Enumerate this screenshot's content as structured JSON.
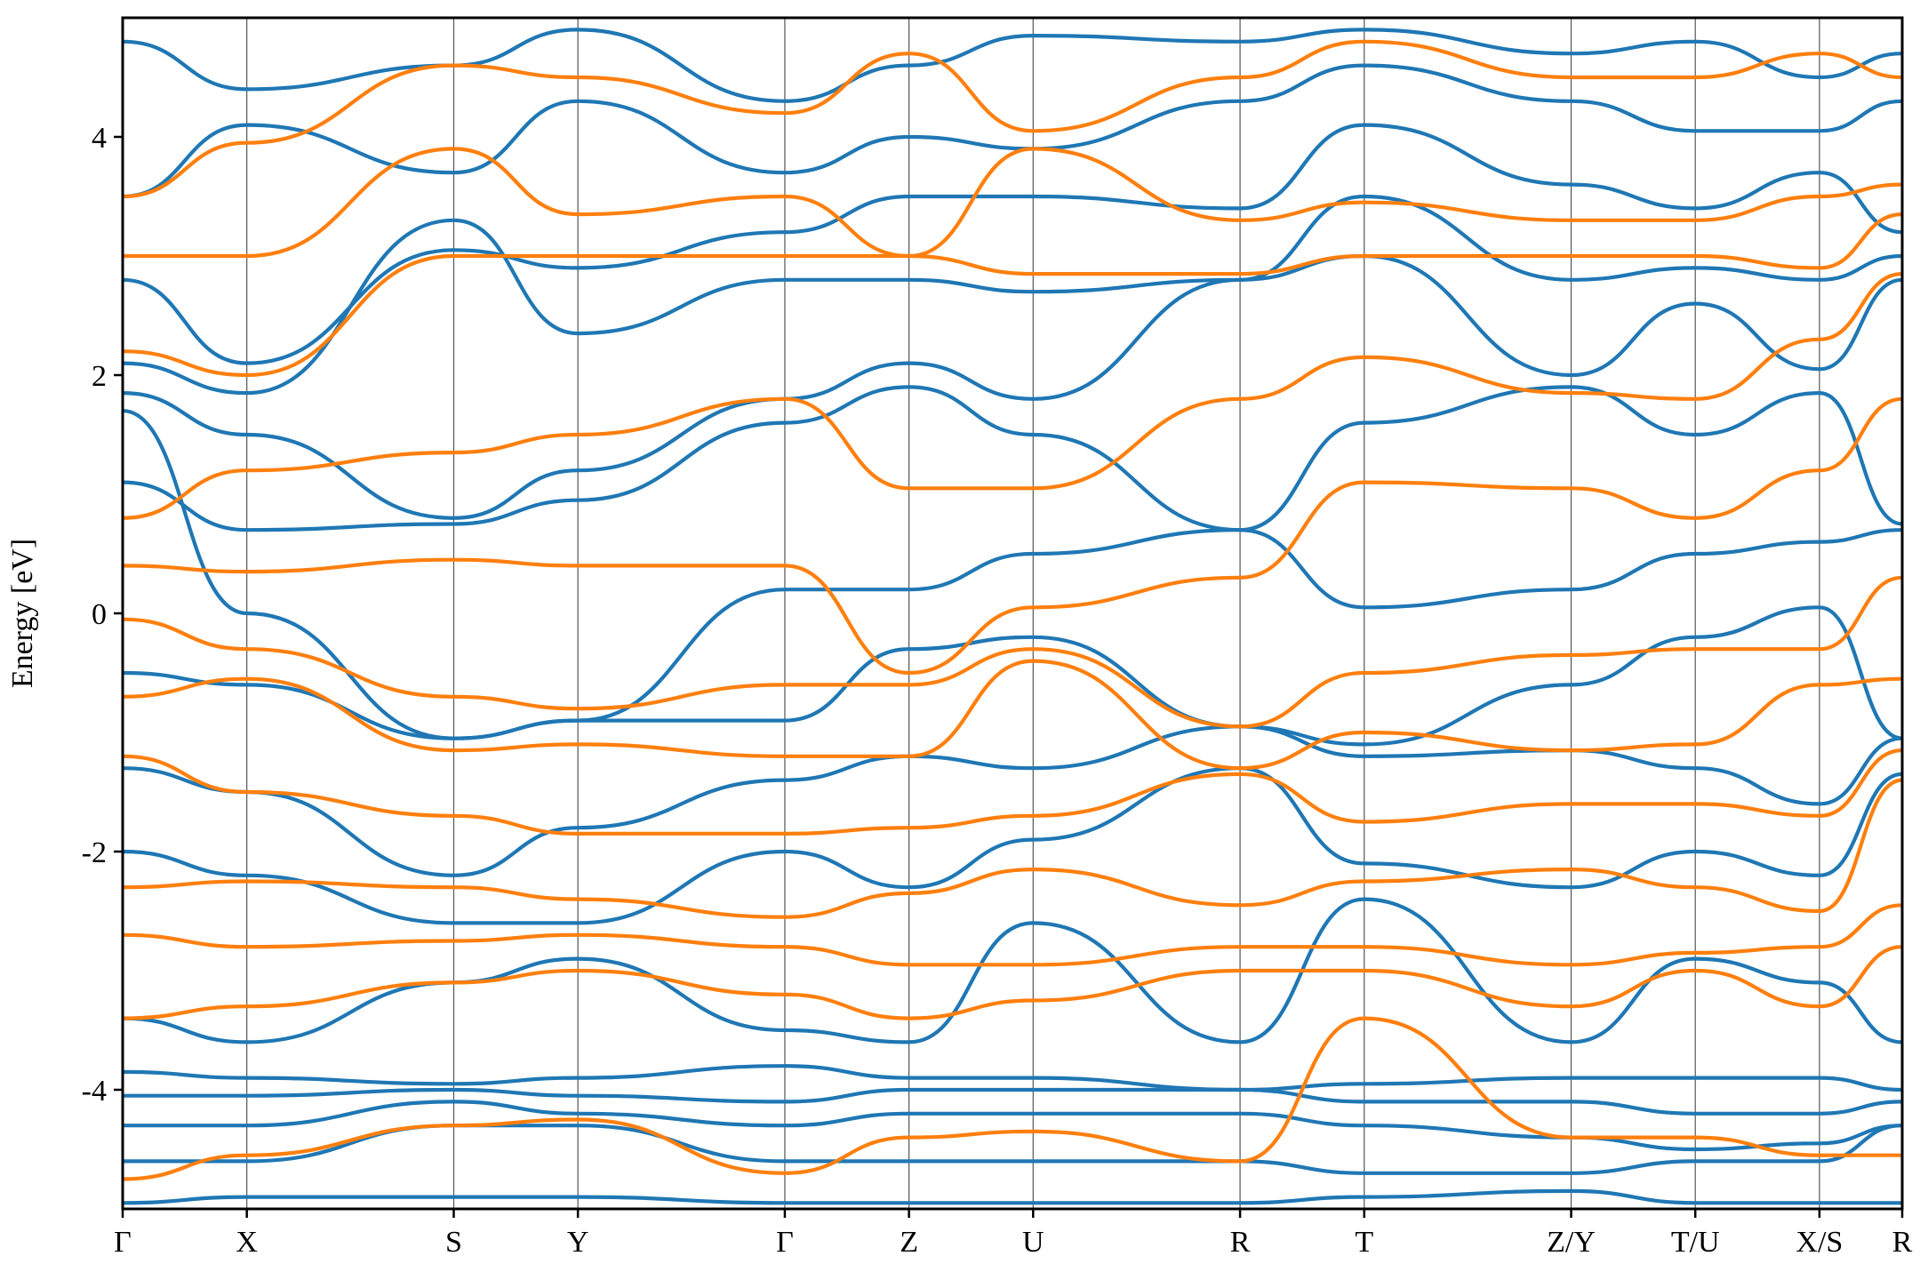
{
  "chart_data": {
    "type": "line",
    "title": "",
    "xlabel": "",
    "ylabel": "Energy [eV]",
    "ylim": [
      -5,
      5
    ],
    "y_ticks": [
      -4,
      -2,
      0,
      2,
      4
    ],
    "y_tick_labels": [
      "-4",
      "-2",
      "0",
      "2",
      "4"
    ],
    "x_range": [
      0,
      14.62
    ],
    "kpath_ticks": [
      {
        "x": 0.0,
        "label": "Γ"
      },
      {
        "x": 1.02,
        "label": "X"
      },
      {
        "x": 2.72,
        "label": "S"
      },
      {
        "x": 3.74,
        "label": "Y"
      },
      {
        "x": 5.44,
        "label": "Γ"
      },
      {
        "x": 6.46,
        "label": "Z"
      },
      {
        "x": 7.48,
        "label": "U"
      },
      {
        "x": 9.18,
        "label": "R"
      },
      {
        "x": 10.2,
        "label": "T"
      },
      {
        "x": 11.9,
        "label": "Z/Y"
      },
      {
        "x": 12.92,
        "label": "T/U"
      },
      {
        "x": 13.94,
        "label": "X/S"
      },
      {
        "x": 14.62,
        "label": "R"
      }
    ],
    "grid": false,
    "legend": "none",
    "series": [
      {
        "color": "#1f77b4",
        "bands": [
          {
            "x": [
              0,
              1.02,
              2.72,
              3.74,
              5.44,
              6.46,
              7.48,
              9.18,
              10.2,
              11.9,
              12.92,
              13.94,
              14.62
            ],
            "y": [
              -4.95,
              -4.9,
              -4.9,
              -4.9,
              -4.95,
              -4.95,
              -4.95,
              -4.95,
              -4.9,
              -4.85,
              -4.95,
              -4.95,
              -4.95
            ]
          },
          {
            "x": [
              0,
              1.02,
              2.72,
              3.74,
              5.44,
              6.46,
              7.48,
              9.18,
              10.2,
              11.9,
              12.92,
              13.94,
              14.62
            ],
            "y": [
              -4.6,
              -4.6,
              -4.3,
              -4.3,
              -4.6,
              -4.6,
              -4.6,
              -4.6,
              -4.7,
              -4.7,
              -4.6,
              -4.6,
              -4.3
            ]
          },
          {
            "x": [
              0,
              1.02,
              2.72,
              3.74,
              5.44,
              6.46,
              7.48,
              9.18,
              10.2,
              11.9,
              12.92,
              13.94,
              14.62
            ],
            "y": [
              -4.3,
              -4.3,
              -4.1,
              -4.2,
              -4.3,
              -4.2,
              -4.2,
              -4.2,
              -4.3,
              -4.4,
              -4.5,
              -4.45,
              -4.3
            ]
          },
          {
            "x": [
              0,
              1.02,
              2.72,
              3.74,
              5.44,
              6.46,
              7.48,
              9.18,
              10.2,
              11.9,
              12.92,
              13.94,
              14.62
            ],
            "y": [
              -4.05,
              -4.05,
              -4.0,
              -4.05,
              -4.1,
              -4.0,
              -4.0,
              -4.0,
              -4.1,
              -4.1,
              -4.2,
              -4.2,
              -4.1
            ]
          },
          {
            "x": [
              0,
              1.02,
              2.72,
              3.74,
              5.44,
              6.46,
              7.48,
              9.18,
              10.2,
              11.9,
              12.92,
              13.94,
              14.62
            ],
            "y": [
              -3.85,
              -3.9,
              -3.95,
              -3.9,
              -3.8,
              -3.9,
              -3.9,
              -4.0,
              -3.95,
              -3.9,
              -3.9,
              -3.9,
              -4.0
            ]
          },
          {
            "x": [
              0,
              1.02,
              2.72,
              3.74,
              5.44,
              6.46,
              7.48,
              9.18,
              10.2,
              11.9,
              12.92,
              13.94,
              14.62
            ],
            "y": [
              -3.4,
              -3.6,
              -3.1,
              -2.9,
              -3.5,
              -3.6,
              -2.6,
              -3.6,
              -2.4,
              -3.6,
              -2.9,
              -3.1,
              -3.6
            ]
          },
          {
            "x": [
              0,
              1.02,
              2.72,
              3.74,
              5.44,
              6.46,
              7.48,
              9.18,
              10.2,
              11.9,
              12.92,
              13.94,
              14.62
            ],
            "y": [
              -2.0,
              -2.2,
              -2.6,
              -2.6,
              -2.0,
              -2.3,
              -1.9,
              -1.3,
              -2.1,
              -2.3,
              -2.0,
              -2.2,
              -1.35
            ]
          },
          {
            "x": [
              0,
              1.02,
              2.72,
              3.74,
              5.44,
              6.46,
              7.48,
              9.18,
              10.2,
              11.9,
              12.92,
              13.94,
              14.62
            ],
            "y": [
              -1.3,
              -1.5,
              -2.2,
              -1.8,
              -1.4,
              -1.2,
              -1.3,
              -0.95,
              -1.2,
              -1.15,
              -1.3,
              -1.6,
              -1.05
            ]
          },
          {
            "x": [
              0,
              1.02,
              2.72,
              3.74,
              5.44,
              6.46,
              7.48,
              9.18,
              10.2,
              11.9,
              12.92,
              13.94,
              14.62
            ],
            "y": [
              -0.5,
              -0.6,
              -1.05,
              -0.9,
              -0.9,
              -0.3,
              -0.2,
              -0.95,
              -1.1,
              -0.6,
              -0.2,
              0.05,
              -1.05
            ]
          },
          {
            "x": [
              0,
              1.02,
              2.72,
              3.74,
              5.44,
              6.46,
              7.48,
              9.18,
              10.2,
              11.9,
              12.92,
              13.94,
              14.62
            ],
            "y": [
              1.7,
              0.0,
              -1.05,
              -0.9,
              0.2,
              0.2,
              0.5,
              0.7,
              0.05,
              0.2,
              0.5,
              0.6,
              0.7
            ]
          },
          {
            "x": [
              0,
              1.02,
              2.72,
              3.74,
              5.44,
              6.46,
              7.48,
              9.18,
              10.2,
              11.9,
              12.92,
              13.94,
              14.62
            ],
            "y": [
              1.1,
              0.7,
              0.75,
              0.95,
              1.6,
              1.9,
              1.5,
              0.7,
              1.6,
              1.9,
              1.5,
              1.85,
              0.75
            ]
          },
          {
            "x": [
              0,
              1.02,
              2.72,
              3.74,
              5.44,
              6.46,
              7.48,
              9.18,
              10.2,
              11.9,
              12.92,
              13.94,
              14.62
            ],
            "y": [
              1.85,
              1.5,
              0.8,
              1.2,
              1.8,
              2.1,
              1.8,
              2.8,
              3.0,
              2.0,
              2.6,
              2.05,
              2.8
            ]
          },
          {
            "x": [
              0,
              1.02,
              2.72,
              3.74,
              5.44,
              6.46,
              7.48,
              9.18,
              10.2,
              11.9,
              12.92,
              13.94,
              14.62
            ],
            "y": [
              2.1,
              1.85,
              3.3,
              2.35,
              2.8,
              2.8,
              2.7,
              2.8,
              3.5,
              2.8,
              2.9,
              2.8,
              3.0
            ]
          },
          {
            "x": [
              0,
              1.02,
              2.72,
              3.74,
              5.44,
              6.46,
              7.48,
              9.18,
              10.2,
              11.9,
              12.92,
              13.94,
              14.62
            ],
            "y": [
              2.8,
              2.1,
              3.05,
              2.9,
              3.2,
              3.5,
              3.5,
              3.4,
              4.1,
              3.6,
              3.4,
              3.7,
              3.2
            ]
          },
          {
            "x": [
              0,
              1.02,
              2.72,
              3.74,
              5.44,
              6.46,
              7.48,
              9.18,
              10.2,
              11.9,
              12.92,
              13.94,
              14.62
            ],
            "y": [
              3.5,
              4.1,
              3.7,
              4.3,
              3.7,
              4.0,
              3.9,
              4.3,
              4.6,
              4.3,
              4.05,
              4.05,
              4.3
            ]
          },
          {
            "x": [
              0,
              1.02,
              2.72,
              3.74,
              5.44,
              6.46,
              7.48,
              9.18,
              10.2,
              11.9,
              12.92,
              13.94,
              14.62
            ],
            "y": [
              4.8,
              4.4,
              4.6,
              4.9,
              4.3,
              4.6,
              4.85,
              4.8,
              4.9,
              4.7,
              4.8,
              4.5,
              4.7
            ]
          }
        ]
      },
      {
        "color": "#ff7f0e",
        "bands": [
          {
            "x": [
              0,
              1.02,
              2.72,
              3.74,
              5.44,
              6.46,
              7.48,
              9.18,
              10.2,
              11.9,
              12.92,
              13.94,
              14.62
            ],
            "y": [
              -4.75,
              -4.55,
              -4.3,
              -4.25,
              -4.7,
              -4.4,
              -4.35,
              -4.6,
              -3.4,
              -4.4,
              -4.4,
              -4.55,
              -4.55
            ]
          },
          {
            "x": [
              0,
              1.02,
              2.72,
              3.74,
              5.44,
              6.46,
              7.48,
              9.18,
              10.2,
              11.9,
              12.92,
              13.94,
              14.62
            ],
            "y": [
              -3.4,
              -3.3,
              -3.1,
              -3.0,
              -3.2,
              -3.4,
              -3.25,
              -3.0,
              -3.0,
              -3.3,
              -3.0,
              -3.3,
              -2.8
            ]
          },
          {
            "x": [
              0,
              1.02,
              2.72,
              3.74,
              5.44,
              6.46,
              7.48,
              9.18,
              10.2,
              11.9,
              12.92,
              13.94,
              14.62
            ],
            "y": [
              -2.7,
              -2.8,
              -2.75,
              -2.7,
              -2.8,
              -2.95,
              -2.95,
              -2.8,
              -2.8,
              -2.95,
              -2.85,
              -2.8,
              -2.45
            ]
          },
          {
            "x": [
              0,
              1.02,
              2.72,
              3.74,
              5.44,
              6.46,
              7.48,
              9.18,
              10.2,
              11.9,
              12.92,
              13.94,
              14.62
            ],
            "y": [
              -2.3,
              -2.25,
              -2.3,
              -2.4,
              -2.55,
              -2.35,
              -2.15,
              -2.45,
              -2.25,
              -2.15,
              -2.3,
              -2.5,
              -1.4
            ]
          },
          {
            "x": [
              0,
              1.02,
              2.72,
              3.74,
              5.44,
              6.46,
              7.48,
              9.18,
              10.2,
              11.9,
              12.92,
              13.94,
              14.62
            ],
            "y": [
              -1.2,
              -1.5,
              -1.7,
              -1.85,
              -1.85,
              -1.8,
              -1.7,
              -1.35,
              -1.75,
              -1.6,
              -1.6,
              -1.7,
              -1.15
            ]
          },
          {
            "x": [
              0,
              1.02,
              2.72,
              3.74,
              5.44,
              6.46,
              7.48,
              9.18,
              10.2,
              11.9,
              12.92,
              13.94,
              14.62
            ],
            "y": [
              -0.7,
              -0.55,
              -1.15,
              -1.1,
              -1.2,
              -1.2,
              -0.4,
              -1.3,
              -1.0,
              -1.15,
              -1.1,
              -0.6,
              -0.55
            ]
          },
          {
            "x": [
              0,
              1.02,
              2.72,
              3.74,
              5.44,
              6.46,
              7.48,
              9.18,
              10.2,
              11.9,
              12.92,
              13.94,
              14.62
            ],
            "y": [
              -0.05,
              -0.3,
              -0.7,
              -0.8,
              -0.6,
              -0.6,
              -0.3,
              -0.95,
              -0.5,
              -0.35,
              -0.3,
              -0.3,
              0.3
            ]
          },
          {
            "x": [
              0,
              1.02,
              2.72,
              3.74,
              5.44,
              6.46,
              7.48,
              9.18,
              10.2,
              11.9,
              12.92,
              13.94,
              14.62
            ],
            "y": [
              0.4,
              0.35,
              0.45,
              0.4,
              0.4,
              -0.5,
              0.05,
              0.3,
              1.1,
              1.05,
              0.8,
              1.2,
              1.8
            ]
          },
          {
            "x": [
              0,
              1.02,
              2.72,
              3.74,
              5.44,
              6.46,
              7.48,
              9.18,
              10.2,
              11.9,
              12.92,
              13.94,
              14.62
            ],
            "y": [
              0.8,
              1.2,
              1.35,
              1.5,
              1.8,
              1.05,
              1.05,
              1.8,
              2.15,
              1.85,
              1.8,
              2.3,
              2.85
            ]
          },
          {
            "x": [
              0,
              1.02,
              2.72,
              3.74,
              5.44,
              6.46,
              7.48,
              9.18,
              10.2,
              11.9,
              12.92,
              13.94,
              14.62
            ],
            "y": [
              2.2,
              2.0,
              3.0,
              3.0,
              3.0,
              3.0,
              2.85,
              2.85,
              3.0,
              3.0,
              3.0,
              2.9,
              3.35
            ]
          },
          {
            "x": [
              0,
              1.02,
              2.72,
              3.74,
              5.44,
              6.46,
              7.48,
              9.18,
              10.2,
              11.9,
              12.92,
              13.94,
              14.62
            ],
            "y": [
              3.0,
              3.0,
              3.9,
              3.35,
              3.5,
              3.0,
              3.9,
              3.3,
              3.45,
              3.3,
              3.3,
              3.5,
              3.6
            ]
          },
          {
            "x": [
              0,
              1.02,
              2.72,
              3.74,
              5.44,
              6.46,
              7.48,
              9.18,
              10.2,
              11.9,
              12.92,
              13.94,
              14.62
            ],
            "y": [
              3.5,
              3.95,
              4.6,
              4.5,
              4.2,
              4.7,
              4.05,
              4.5,
              4.8,
              4.5,
              4.5,
              4.7,
              4.5
            ]
          }
        ]
      }
    ]
  }
}
